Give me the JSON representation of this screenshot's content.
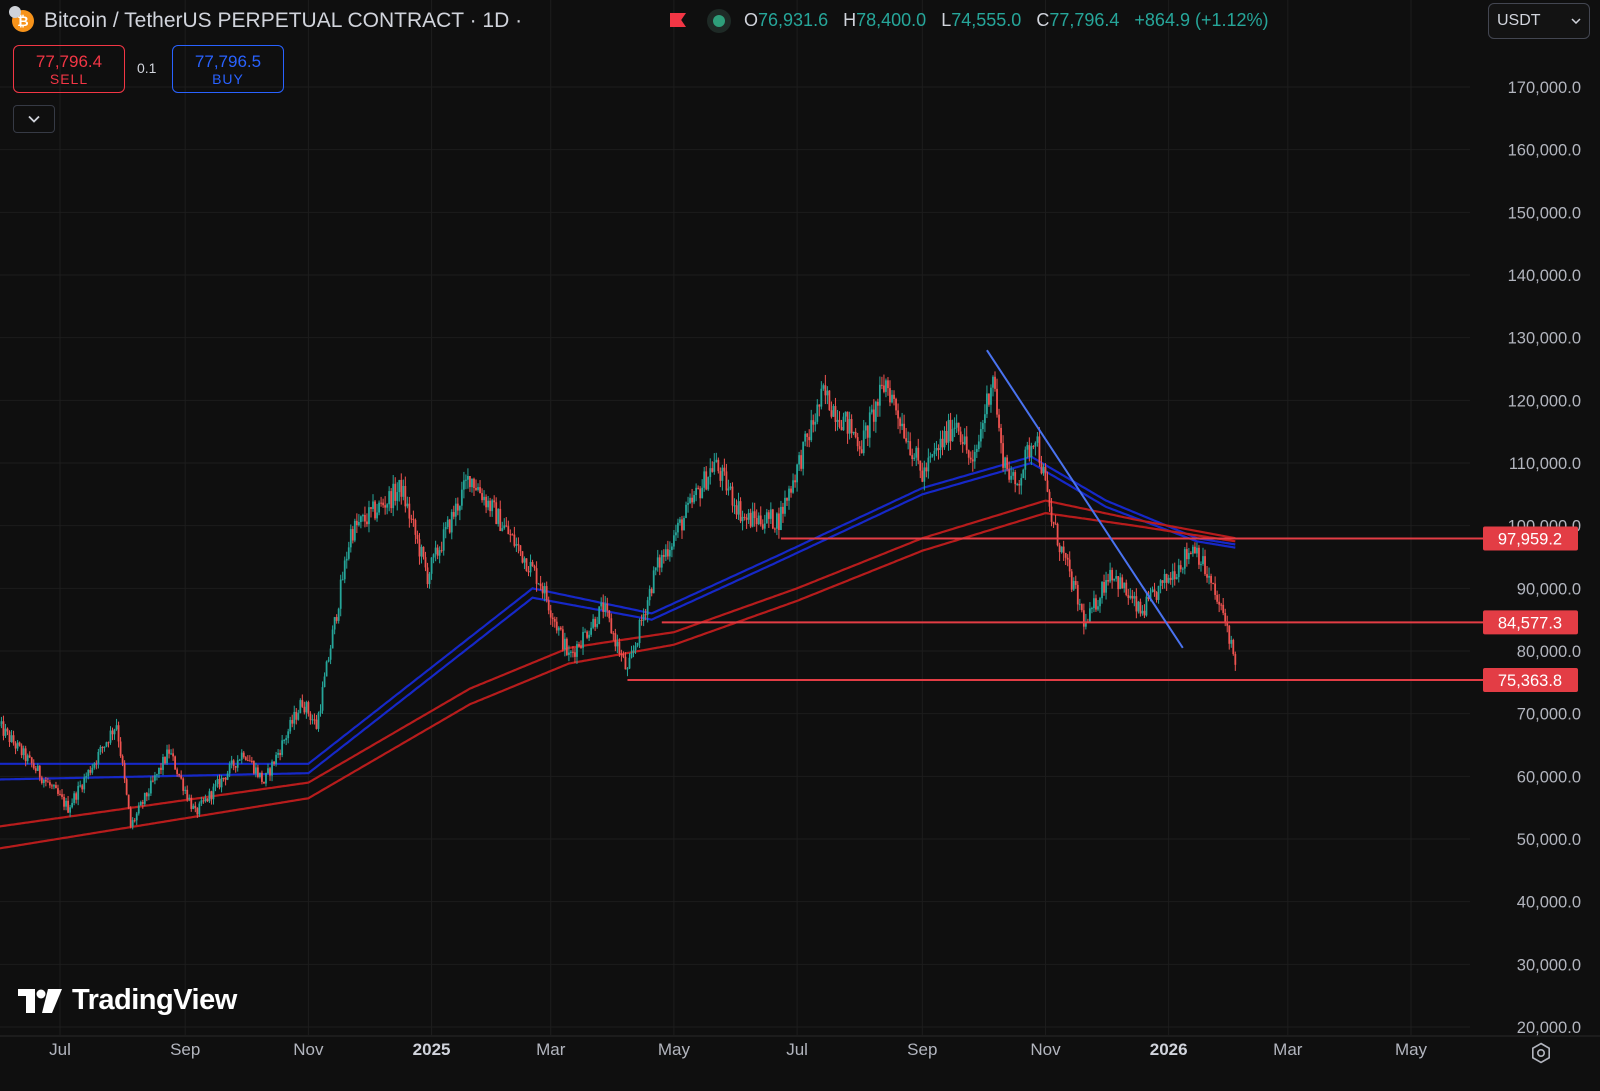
{
  "header": {
    "symbol_title": "Bitcoin / TetherUS PERPETUAL CONTRACT · 1D ·",
    "ohlc": {
      "o_label": "O",
      "o_value": "76,931.6",
      "h_label": "H",
      "h_value": "78,400.0",
      "l_label": "L",
      "l_value": "74,555.0",
      "c_label": "C",
      "c_value": "77,796.4",
      "change": "+864.9 (+1.12%)"
    },
    "currency_select": "USDT",
    "icons": [
      "bitcoin-tether-icon",
      "flag-icon",
      "status-dot-icon",
      "chevron-down-icon"
    ]
  },
  "trade": {
    "sell_price": "77,796.4",
    "sell_label": "SELL",
    "quantity": "0.1",
    "buy_price": "77,796.5",
    "buy_label": "BUY"
  },
  "brand": {
    "name": "TradingView"
  },
  "colors": {
    "background": "#0f0f0f",
    "up": "#26a69a",
    "down": "#ef5350",
    "level_line": "#e33d45",
    "trend_line": "#4a73f0",
    "ema_blue": "#1628c8",
    "ema_red": "#b71c1c",
    "grid": "#1d1d1d"
  },
  "chart_data": {
    "type": "candlestick",
    "y_scale": "linear",
    "ylim": [
      20000,
      175000
    ],
    "y_ticks": [
      "170,000.0",
      "160,000.0",
      "150,000.0",
      "140,000.0",
      "130,000.0",
      "120,000.0",
      "110,000.0",
      "100,000.0",
      "90,000.0",
      "80,000.0",
      "70,000.0",
      "60,000.0",
      "50,000.0",
      "40,000.0",
      "30,000.0",
      "20,000.0"
    ],
    "y_tick_values": [
      170000,
      160000,
      150000,
      140000,
      130000,
      120000,
      110000,
      100000,
      90000,
      80000,
      70000,
      60000,
      50000,
      40000,
      30000,
      20000
    ],
    "x_ticks": [
      "Jul",
      "Sep",
      "Nov",
      "2025",
      "Mar",
      "May",
      "Jul",
      "Sep",
      "Nov",
      "2026",
      "Mar",
      "May"
    ],
    "x_tick_dates": [
      "2024-07-01",
      "2024-09-01",
      "2024-11-01",
      "2025-01-01",
      "2025-03-01",
      "2025-05-01",
      "2025-07-01",
      "2025-09-01",
      "2025-11-01",
      "2026-01-01",
      "2026-03-01",
      "2026-05-01"
    ],
    "x_tick_bold": [
      false,
      false,
      false,
      true,
      false,
      false,
      false,
      false,
      false,
      true,
      false,
      false
    ],
    "grid": true,
    "price_anchors": [
      {
        "date": "2024-06-01",
        "close": 68000
      },
      {
        "date": "2024-07-05",
        "close": 55000
      },
      {
        "date": "2024-07-29",
        "close": 68500
      },
      {
        "date": "2024-08-05",
        "close": 52000
      },
      {
        "date": "2024-08-24",
        "close": 64000
      },
      {
        "date": "2024-09-06",
        "close": 54000
      },
      {
        "date": "2024-09-30",
        "close": 64000
      },
      {
        "date": "2024-10-10",
        "close": 59000
      },
      {
        "date": "2024-10-29",
        "close": 72000
      },
      {
        "date": "2024-11-05",
        "close": 68000
      },
      {
        "date": "2024-11-22",
        "close": 99000
      },
      {
        "date": "2024-12-17",
        "close": 106000
      },
      {
        "date": "2024-12-30",
        "close": 92000
      },
      {
        "date": "2025-01-20",
        "close": 108000
      },
      {
        "date": "2025-02-24",
        "close": 91000
      },
      {
        "date": "2025-03-10",
        "close": 79000
      },
      {
        "date": "2025-03-27",
        "close": 87000
      },
      {
        "date": "2025-04-08",
        "close": 76500
      },
      {
        "date": "2025-04-22",
        "close": 93000
      },
      {
        "date": "2025-05-21",
        "close": 110000
      },
      {
        "date": "2025-06-05",
        "close": 101000
      },
      {
        "date": "2025-06-22",
        "close": 101000
      },
      {
        "date": "2025-07-14",
        "close": 121000
      },
      {
        "date": "2025-08-02",
        "close": 113000
      },
      {
        "date": "2025-08-14",
        "close": 123000
      },
      {
        "date": "2025-09-01",
        "close": 108000
      },
      {
        "date": "2025-09-18",
        "close": 117000
      },
      {
        "date": "2025-09-26",
        "close": 109000
      },
      {
        "date": "2025-10-06",
        "close": 124500
      },
      {
        "date": "2025-10-10",
        "close": 112000
      },
      {
        "date": "2025-10-17",
        "close": 106000
      },
      {
        "date": "2025-10-27",
        "close": 115000
      },
      {
        "date": "2025-11-04",
        "close": 101000
      },
      {
        "date": "2025-11-21",
        "close": 84000
      },
      {
        "date": "2025-12-03",
        "close": 93000
      },
      {
        "date": "2025-12-18",
        "close": 86000
      },
      {
        "date": "2026-01-14",
        "close": 97000
      },
      {
        "date": "2026-01-25",
        "close": 88000
      },
      {
        "date": "2026-01-30",
        "close": 84000
      },
      {
        "date": "2026-02-03",
        "close": 77796.4
      }
    ],
    "moving_averages": [
      {
        "color": "#1628c8",
        "anchors": [
          {
            "date": "2024-06-01",
            "value": 62000
          },
          {
            "date": "2024-11-01",
            "value": 62000
          },
          {
            "date": "2025-02-20",
            "value": 90000
          },
          {
            "date": "2025-04-20",
            "value": 86000
          },
          {
            "date": "2025-06-20",
            "value": 95000
          },
          {
            "date": "2025-09-01",
            "value": 106000
          },
          {
            "date": "2025-10-25",
            "value": 111000
          },
          {
            "date": "2025-12-01",
            "value": 104000
          },
          {
            "date": "2026-01-15",
            "value": 98000
          },
          {
            "date": "2026-02-03",
            "value": 97000
          }
        ]
      },
      {
        "color": "#1628c8",
        "anchors": [
          {
            "date": "2024-06-01",
            "value": 59500
          },
          {
            "date": "2024-11-01",
            "value": 60500
          },
          {
            "date": "2025-02-20",
            "value": 88500
          },
          {
            "date": "2025-04-20",
            "value": 85000
          },
          {
            "date": "2025-06-20",
            "value": 94000
          },
          {
            "date": "2025-09-01",
            "value": 105000
          },
          {
            "date": "2025-10-25",
            "value": 110000
          },
          {
            "date": "2025-12-01",
            "value": 103000
          },
          {
            "date": "2026-01-15",
            "value": 97500
          },
          {
            "date": "2026-02-03",
            "value": 96500
          }
        ]
      },
      {
        "color": "#b71c1c",
        "anchors": [
          {
            "date": "2024-06-01",
            "value": 52000
          },
          {
            "date": "2024-11-01",
            "value": 59000
          },
          {
            "date": "2025-01-20",
            "value": 74000
          },
          {
            "date": "2025-03-10",
            "value": 80500
          },
          {
            "date": "2025-05-01",
            "value": 83000
          },
          {
            "date": "2025-07-01",
            "value": 90000
          },
          {
            "date": "2025-09-01",
            "value": 98000
          },
          {
            "date": "2025-11-01",
            "value": 104000
          },
          {
            "date": "2025-12-15",
            "value": 101000
          },
          {
            "date": "2026-02-03",
            "value": 98000
          }
        ]
      },
      {
        "color": "#b71c1c",
        "anchors": [
          {
            "date": "2024-06-01",
            "value": 48500
          },
          {
            "date": "2024-11-01",
            "value": 56500
          },
          {
            "date": "2025-01-20",
            "value": 71500
          },
          {
            "date": "2025-03-10",
            "value": 78000
          },
          {
            "date": "2025-05-01",
            "value": 81000
          },
          {
            "date": "2025-07-01",
            "value": 88000
          },
          {
            "date": "2025-09-01",
            "value": 96000
          },
          {
            "date": "2025-11-01",
            "value": 102000
          },
          {
            "date": "2025-12-15",
            "value": 100000
          },
          {
            "date": "2026-02-03",
            "value": 97500
          }
        ]
      }
    ],
    "horizontal_levels": [
      {
        "value": 97959.2,
        "label": "97,959.2",
        "from": "2025-06-23",
        "to": "2026-02-03"
      },
      {
        "value": 84577.3,
        "label": "84,577.3",
        "from": "2025-04-25",
        "to": "2026-02-03"
      },
      {
        "value": 75363.8,
        "label": "75,363.8",
        "from": "2025-04-08",
        "to": "2026-02-03"
      }
    ],
    "trend_line": {
      "from": {
        "date": "2025-10-03",
        "value": 128000
      },
      "to": {
        "date": "2026-01-08",
        "value": 80500
      }
    }
  }
}
